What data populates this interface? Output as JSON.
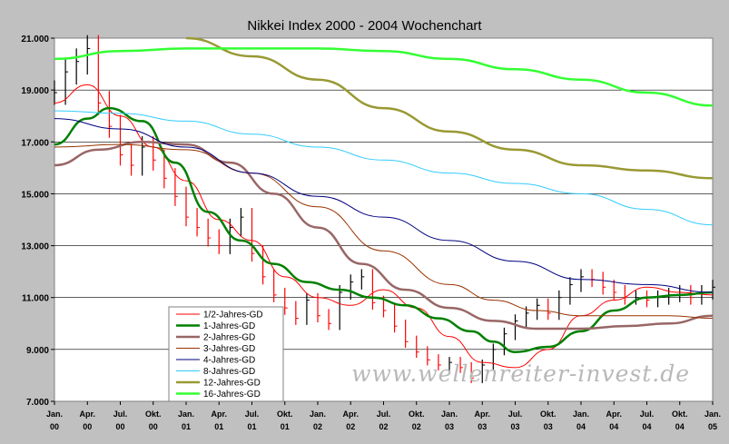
{
  "chart_data": {
    "type": "line",
    "title": "Nikkei Index 2000 - 2004 Wochenchart",
    "xlabel": "",
    "ylabel": "",
    "ylim": [
      7000,
      21000
    ],
    "yticks": [
      "7.000",
      "9.000",
      "11.000",
      "13.000",
      "15.000",
      "17.000",
      "19.000",
      "21.000"
    ],
    "xlim": [
      0,
      60
    ],
    "xticks": [
      {
        "top": "Jan.",
        "bottom": "00"
      },
      {
        "top": "Apr.",
        "bottom": "00"
      },
      {
        "top": "Jul.",
        "bottom": "00"
      },
      {
        "top": "Okt.",
        "bottom": "00"
      },
      {
        "top": "Jan.",
        "bottom": "01"
      },
      {
        "top": "Apr.",
        "bottom": "01"
      },
      {
        "top": "Jul.",
        "bottom": "01"
      },
      {
        "top": "Okt.",
        "bottom": "01"
      },
      {
        "top": "Jan.",
        "bottom": "02"
      },
      {
        "top": "Apr.",
        "bottom": "02"
      },
      {
        "top": "Jul.",
        "bottom": "02"
      },
      {
        "top": "Okt.",
        "bottom": "02"
      },
      {
        "top": "Jan.",
        "bottom": "03"
      },
      {
        "top": "Apr.",
        "bottom": "03"
      },
      {
        "top": "Jul.",
        "bottom": "03"
      },
      {
        "top": "Okt.",
        "bottom": "03"
      },
      {
        "top": "Jan.",
        "bottom": "04"
      },
      {
        "top": "Apr.",
        "bottom": "04"
      },
      {
        "top": "Jul.",
        "bottom": "04"
      },
      {
        "top": "Okt.",
        "bottom": "04"
      },
      {
        "top": "Jan.",
        "bottom": "05"
      }
    ],
    "grid": true,
    "legend_position": "bottom-left",
    "watermark": "www.wellenreiter-invest.de",
    "series": [
      {
        "name": "1/2-Jahres-GD",
        "color": "#ff0000",
        "width": 1,
        "x": [
          0,
          3,
          6,
          9,
          12,
          15,
          18,
          21,
          24,
          27,
          30,
          33,
          36,
          39,
          42,
          45,
          48,
          51,
          54,
          57,
          60
        ],
        "y": [
          18500,
          19200,
          18000,
          16800,
          15500,
          14000,
          13200,
          11800,
          11000,
          10700,
          11300,
          10600,
          9500,
          8500,
          8300,
          9000,
          10300,
          10900,
          11400,
          11200,
          11100
        ]
      },
      {
        "name": "1-Jahres-GD",
        "color": "#008000",
        "width": 2.5,
        "x": [
          0,
          3,
          5,
          8,
          11,
          14,
          17,
          20,
          23,
          26,
          29,
          32,
          35,
          38,
          40,
          42,
          45,
          48,
          51,
          54,
          57,
          60
        ],
        "y": [
          16900,
          17900,
          18300,
          17800,
          16200,
          14300,
          13200,
          12300,
          11600,
          11300,
          11000,
          10700,
          10200,
          9700,
          9300,
          8900,
          9100,
          9700,
          10500,
          11000,
          11100,
          11200
        ]
      },
      {
        "name": "2-Jahres-GD",
        "color": "#996666",
        "width": 2.5,
        "x": [
          0,
          4,
          8,
          12,
          16,
          20,
          24,
          28,
          32,
          36,
          40,
          44,
          48,
          52,
          56,
          60
        ],
        "y": [
          16100,
          16700,
          17000,
          16900,
          16200,
          15000,
          13700,
          12300,
          11300,
          10600,
          10100,
          9800,
          9800,
          9900,
          10000,
          10300
        ]
      },
      {
        "name": "3-Jahres-GD",
        "color": "#993300",
        "width": 1,
        "x": [
          0,
          6,
          12,
          18,
          24,
          30,
          36,
          40,
          44,
          48,
          52,
          56,
          60
        ],
        "y": [
          16800,
          16900,
          16700,
          15800,
          14500,
          12800,
          11500,
          10900,
          10500,
          10300,
          10300,
          10300,
          10200
        ]
      },
      {
        "name": "4-Jahres-GD",
        "color": "#000080",
        "width": 1,
        "x": [
          0,
          6,
          12,
          18,
          24,
          30,
          36,
          42,
          48,
          54,
          60
        ],
        "y": [
          17900,
          17500,
          16800,
          15800,
          14900,
          14100,
          13200,
          12400,
          11700,
          11500,
          11200
        ]
      },
      {
        "name": "8-Jahres-GD",
        "color": "#33ccff",
        "width": 1,
        "x": [
          0,
          6,
          12,
          18,
          24,
          30,
          36,
          42,
          48,
          54,
          60
        ],
        "y": [
          18200,
          18100,
          17800,
          17300,
          16800,
          16300,
          15800,
          15400,
          15000,
          14400,
          13800
        ]
      },
      {
        "name": "12-Jahres-GD",
        "color": "#999933",
        "width": 2.5,
        "x": [
          12,
          18,
          24,
          30,
          36,
          42,
          48,
          54,
          60
        ],
        "y": [
          21000,
          20300,
          19400,
          18300,
          17400,
          16700,
          16100,
          15900,
          15600
        ]
      },
      {
        "name": "16-Jahres-GD",
        "color": "#33ff33",
        "width": 2.5,
        "x": [
          0,
          6,
          12,
          18,
          24,
          30,
          36,
          42,
          48,
          54,
          60
        ],
        "y": [
          20200,
          20500,
          20600,
          20600,
          20600,
          20500,
          20200,
          19800,
          19400,
          18900,
          18400
        ]
      }
    ],
    "weekly_bars": {
      "color_up": "#000000",
      "color_down": "#ff0000",
      "x": [
        0,
        1,
        2,
        3,
        4,
        5,
        6,
        7,
        8,
        9,
        10,
        11,
        12,
        13,
        14,
        15,
        16,
        17,
        18,
        19,
        20,
        21,
        22,
        23,
        24,
        25,
        26,
        27,
        28,
        29,
        30,
        31,
        32,
        33,
        34,
        35,
        36,
        37,
        38,
        39,
        40,
        41,
        42,
        43,
        44,
        45,
        46,
        47,
        48,
        49,
        50,
        51,
        52,
        53,
        54,
        55,
        56,
        57,
        58,
        59,
        60
      ],
      "close": [
        18900,
        19700,
        20100,
        20600,
        18500,
        17600,
        16500,
        16100,
        16800,
        16300,
        15600,
        14900,
        14100,
        13700,
        13300,
        13000,
        13700,
        14100,
        12700,
        11800,
        11100,
        10600,
        10200,
        10900,
        10300,
        10000,
        11200,
        11600,
        11800,
        10800,
        10500,
        9900,
        9300,
        8900,
        8600,
        8400,
        8500,
        8300,
        7900,
        8400,
        9000,
        9600,
        10100,
        10400,
        10700,
        10400,
        11000,
        11500,
        11800,
        11700,
        11400,
        11200,
        11000,
        11000,
        10900,
        11000,
        11100,
        11200,
        11000,
        11200,
        11400
      ]
    }
  }
}
